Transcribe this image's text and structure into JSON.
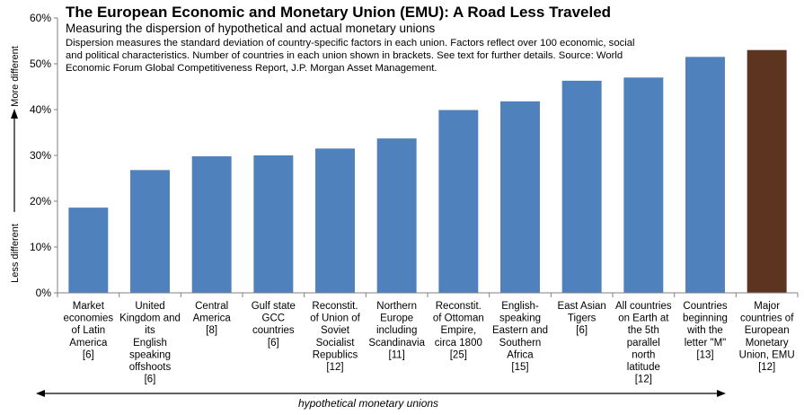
{
  "chart_data": {
    "type": "bar",
    "title": "The European Economic and Monetary Union (EMU): A Road Less Traveled",
    "subtitle": "Measuring the dispersion of hypothetical and actual monetary unions",
    "note": "Dispersion measures the standard deviation of country-specific factors in each union.  Factors reflect over 100 economic, social and political characteristics.  Number of countries in each union shown in brackets.  See text for further details.  Source:  World Economic Forum Global Competitiveness Report, J.P. Morgan Asset Management.",
    "y_axis_top_label": "More different",
    "y_axis_bottom_label": "Less different",
    "x_axis_caption": "hypothetical monetary unions",
    "ylim": [
      0,
      0.6
    ],
    "yticks": [
      "0%",
      "10%",
      "20%",
      "30%",
      "40%",
      "50%",
      "60%"
    ],
    "grid": false,
    "legend": "none",
    "categories": [
      [
        "Market",
        "economies",
        "of Latin",
        "America",
        "[6]"
      ],
      [
        "United",
        "Kingdom and",
        "its",
        "English",
        "speaking",
        "offshoots",
        "[6]"
      ],
      [
        "Central",
        "America",
        "[8]"
      ],
      [
        "Gulf state",
        "GCC",
        "countries",
        "[6]"
      ],
      [
        "Reconstit.",
        "of Union of",
        "Soviet",
        "Socialist",
        "Republics",
        "[12]"
      ],
      [
        "Northern",
        "Europe",
        "including",
        "Scandinavia",
        "[11]"
      ],
      [
        "Reconstit.",
        "of Ottoman",
        "Empire,",
        "circa 1800",
        "[25]"
      ],
      [
        "English-",
        "speaking",
        "Eastern and",
        "Southern",
        "Africa",
        "[15]"
      ],
      [
        "East Asian",
        "Tigers",
        "[6]"
      ],
      [
        "All countries",
        "on Earth at",
        "the 5th",
        "parallel",
        "north",
        "latitude",
        "[12]"
      ],
      [
        "Countries",
        "beginning",
        "with the",
        "letter \"M\"",
        "[13]"
      ],
      [
        "Major",
        "countries of",
        "European",
        "Monetary",
        "Union, EMU",
        "[12]"
      ]
    ],
    "values": [
      0.186,
      0.268,
      0.298,
      0.3,
      0.315,
      0.337,
      0.399,
      0.418,
      0.463,
      0.47,
      0.515,
      0.53
    ],
    "colors": {
      "hypothetical": "#4f81bd",
      "actual": "#5c3420",
      "axis": "#808080"
    },
    "highlight_index": 11
  }
}
